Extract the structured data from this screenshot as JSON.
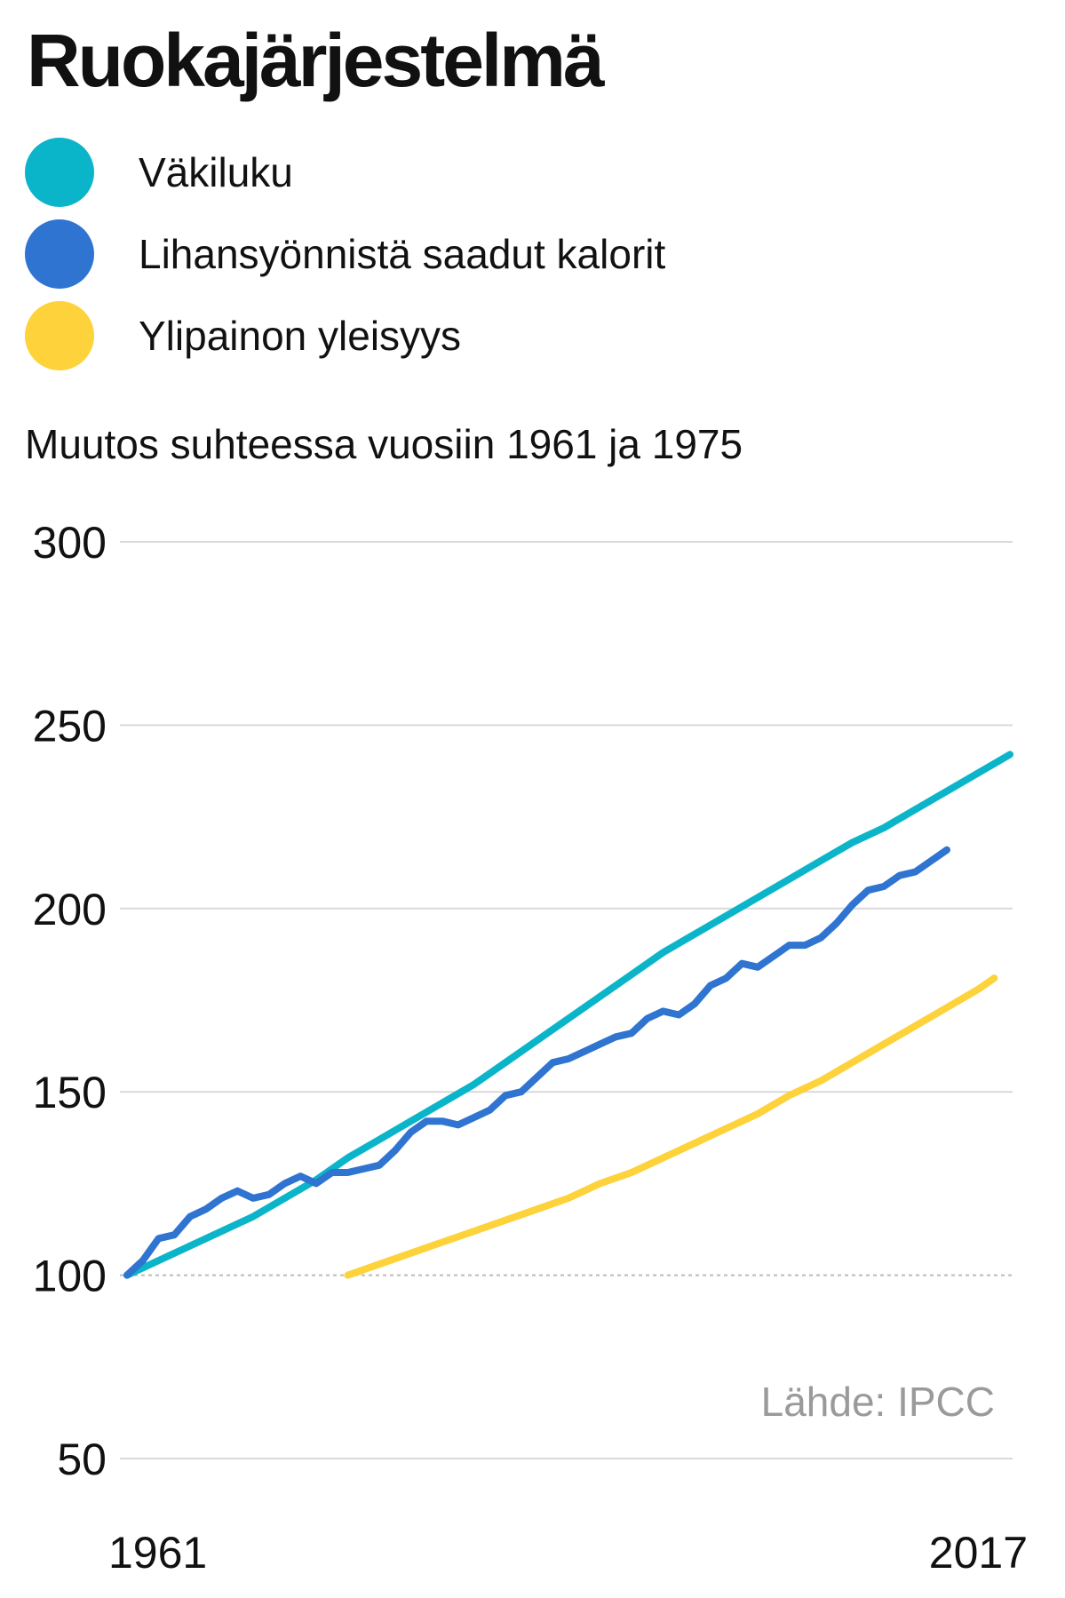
{
  "title": "Ruokajärjestelmä",
  "subtitle": "Muutos suhteessa vuosiin 1961 ja 1975",
  "source": "Lähde: IPCC",
  "colors": {
    "population": "#0bb5c9",
    "meat": "#2f74d0",
    "obesity": "#fdd23a",
    "grid": "#d9d9d9",
    "baseline": "#bbbbbb"
  },
  "chart_data": {
    "type": "line",
    "title": "Ruokajärjestelmä",
    "xlabel": "",
    "ylabel": "Muutos suhteessa vuosiin 1961 ja 1975",
    "xlim": [
      1961,
      2017
    ],
    "ylim": [
      50,
      300
    ],
    "yticks": [
      "300",
      "250",
      "200",
      "150",
      "100",
      "50"
    ],
    "xticks": [
      "1961",
      "2017"
    ],
    "grid": true,
    "baseline": 100,
    "legend_position": "top-left",
    "series": [
      {
        "name": "Väkiluku",
        "color": "#0bb5c9",
        "x": [
          1961,
          1963,
          1965,
          1967,
          1969,
          1971,
          1973,
          1975,
          1977,
          1979,
          1981,
          1983,
          1985,
          1987,
          1989,
          1991,
          1993,
          1995,
          1997,
          1999,
          2001,
          2003,
          2005,
          2007,
          2009,
          2011,
          2013,
          2015,
          2017
        ],
        "y": [
          100,
          104,
          108,
          112,
          116,
          121,
          126,
          132,
          137,
          142,
          147,
          152,
          158,
          164,
          170,
          176,
          182,
          188,
          193,
          198,
          203,
          208,
          213,
          218,
          222,
          227,
          232,
          237,
          242
        ]
      },
      {
        "name": "Lihansyönnistä saadut kalorit",
        "color": "#2f74d0",
        "x": [
          1961,
          1962,
          1963,
          1964,
          1965,
          1966,
          1967,
          1968,
          1969,
          1970,
          1971,
          1972,
          1973,
          1974,
          1975,
          1976,
          1977,
          1978,
          1979,
          1980,
          1981,
          1982,
          1983,
          1984,
          1985,
          1986,
          1987,
          1988,
          1989,
          1990,
          1991,
          1992,
          1993,
          1994,
          1995,
          1996,
          1997,
          1998,
          1999,
          2000,
          2001,
          2002,
          2003,
          2004,
          2005,
          2006,
          2007,
          2008,
          2009,
          2010,
          2011,
          2012,
          2013
        ],
        "y": [
          100,
          104,
          110,
          111,
          116,
          118,
          121,
          123,
          121,
          122,
          125,
          127,
          125,
          128,
          128,
          129,
          130,
          134,
          139,
          142,
          142,
          141,
          143,
          145,
          149,
          150,
          154,
          158,
          159,
          161,
          163,
          165,
          166,
          170,
          172,
          171,
          174,
          179,
          181,
          185,
          184,
          187,
          190,
          190,
          192,
          196,
          201,
          205,
          206,
          209,
          210,
          213,
          216
        ]
      },
      {
        "name": "Ylipainon yleisyys",
        "color": "#fdd23a",
        "x": [
          1975,
          1977,
          1979,
          1981,
          1983,
          1985,
          1987,
          1989,
          1991,
          1993,
          1995,
          1997,
          1999,
          2001,
          2003,
          2005,
          2007,
          2009,
          2011,
          2013,
          2015,
          2016
        ],
        "y": [
          100,
          103,
          106,
          109,
          112,
          115,
          118,
          121,
          125,
          128,
          132,
          136,
          140,
          144,
          149,
          153,
          158,
          163,
          168,
          173,
          178,
          181
        ]
      }
    ]
  }
}
